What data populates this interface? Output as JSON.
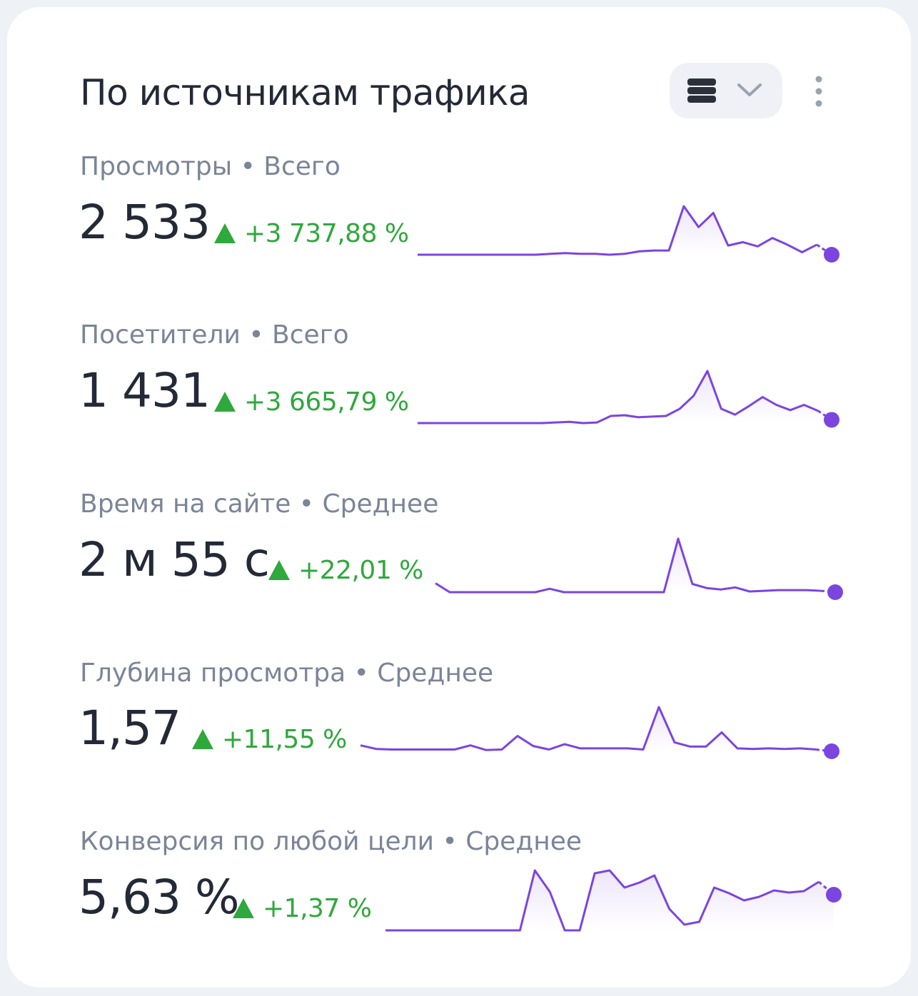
{
  "header": {
    "title": "По источникам трафика",
    "view_icon": "stack-icon",
    "dropdown_icon": "chevron-down-icon",
    "menu_icon": "more-vertical-icon"
  },
  "colors": {
    "line": "#7b45e0",
    "delta_positive": "#2fa83c",
    "text": "#232936",
    "label": "#7b8498"
  },
  "metrics": [
    {
      "label": "Просмотры • Всего",
      "value": "2 533",
      "delta": "+3 737,88 %",
      "spark": [
        0,
        0,
        0,
        0,
        0,
        0,
        0,
        0,
        0,
        1,
        2,
        1,
        1,
        0,
        1,
        4,
        5,
        5,
        58,
        33,
        50,
        11,
        15,
        10,
        20,
        12,
        3,
        12,
        0
      ]
    },
    {
      "label": "Посетители • Всего",
      "value": "1 431",
      "delta": "+3 665,79 %",
      "spark": [
        0,
        0,
        0,
        0,
        0,
        0,
        0,
        0,
        0,
        0,
        1,
        2,
        0,
        1,
        11,
        12,
        9,
        10,
        11,
        22,
        42,
        80,
        22,
        13,
        26,
        40,
        28,
        20,
        28,
        19,
        5
      ]
    },
    {
      "label": "Время на сайте • Среднее",
      "value": "2 м 55 с",
      "delta": "+22,01 %",
      "spark": [
        13,
        0,
        0,
        0,
        0,
        0,
        0,
        0,
        5,
        0,
        0,
        0,
        0,
        0,
        0,
        0,
        0,
        78,
        12,
        6,
        4,
        7,
        1,
        2,
        3,
        3,
        3,
        2,
        0
      ]
    },
    {
      "label": "Глубина просмотра • Среднее",
      "value": "1,57",
      "delta": "+11,55 %",
      "spark": [
        10,
        4,
        3,
        3,
        3,
        3,
        3,
        10,
        2,
        3,
        26,
        9,
        3,
        12,
        5,
        5,
        5,
        5,
        3,
        75,
        15,
        8,
        8,
        32,
        5,
        4,
        5,
        4,
        5,
        3,
        0
      ]
    },
    {
      "label": "Конверсия по любой цели • Среднее",
      "value": "5,63 %",
      "delta": "+1,37 %",
      "spark": [
        0,
        0,
        0,
        0,
        0,
        0,
        0,
        0,
        0,
        0,
        84,
        54,
        0,
        0,
        80,
        84,
        60,
        67,
        77,
        30,
        8,
        12,
        60,
        52,
        42,
        47,
        56,
        53,
        55,
        68,
        50
      ]
    }
  ]
}
